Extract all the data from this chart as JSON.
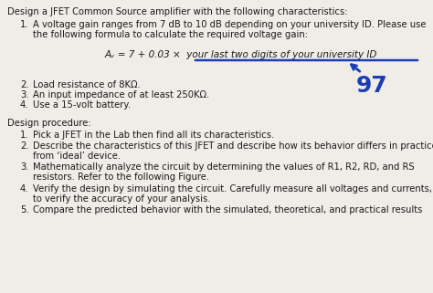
{
  "background_color": "#f0ede8",
  "body_text_color": "#1a1a1a",
  "blue_color": "#1a3db5",
  "font_size": 7.2,
  "font_size_formula": 7.5,
  "font_size_97": 18,
  "title": "Design a JFET Common Source amplifier with the following characteristics:",
  "char1_line1": "A voltage gain ranges from 7 dB to 10 dB depending on your university ID. Please use",
  "char1_line2": "the following formula to calculate the required voltage gain:",
  "formula": "Aᵥ = 7 + 0.03 ×  your last two digits of your university ID",
  "char2": "Load resistance of 8KΩ.",
  "char3": "An input impedance of at least 250KΩ.",
  "char4": "Use a 15-volt battery.",
  "proc_title": "Design procedure:",
  "proc1": "Pick a JFET in the Lab then find all its characteristics.",
  "proc2_line1": "Describe the characteristics of this JFET and describe how its behavior differs in practice",
  "proc2_line2": "from ‘ideal’ device.",
  "proc3_line1": "Mathematically analyze the circuit by determining the values of R1, R2, RD, and RS",
  "proc3_line2": "resistors. Refer to the following Figure.",
  "proc4_line1": "Verify the design by simulating the circuit. Carefully measure all voltages and currents,",
  "proc4_line2": "to verify the accuracy of your analysis.",
  "proc5": "Compare the predicted behavior with the simulated, theoretical, and practical results"
}
